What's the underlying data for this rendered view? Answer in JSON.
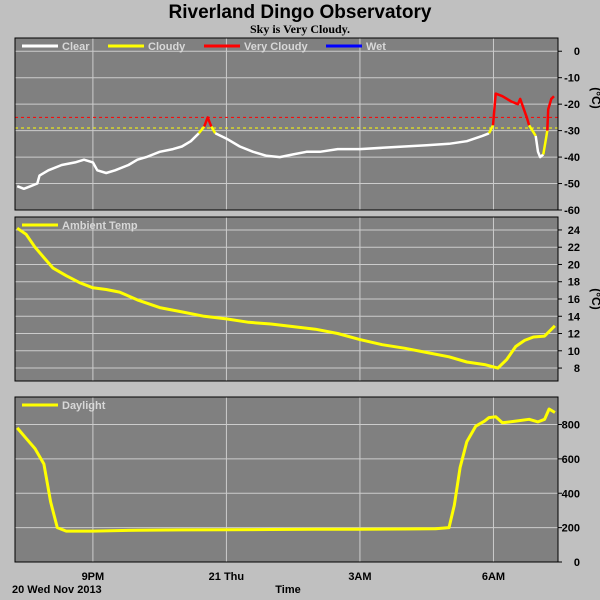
{
  "title": "Riverland Dingo Observatory",
  "subtitle": "Sky is Very Cloudy.",
  "colors": {
    "background": "#c0c0c0",
    "plot_bg": "#808080",
    "grid": "#cccccc",
    "clear": "#ffffff",
    "cloudy": "#ffff00",
    "very_cloudy": "#ff0000",
    "wet": "#0000ff"
  },
  "x_axis": {
    "label": "Time",
    "date_label": "20 Wed Nov 2013",
    "ticks": [
      "9PM",
      "21 Thu",
      "3AM",
      "6AM"
    ],
    "tick_hours": [
      21,
      24,
      27,
      30
    ],
    "range": [
      19.25,
      31.45
    ]
  },
  "chart_data": [
    {
      "type": "line",
      "name": "sky",
      "legend": [
        "Clear",
        "Cloudy",
        "Very Cloudy",
        "Wet"
      ],
      "ylabel": "(°C)",
      "ylim": [
        -60,
        5
      ],
      "yticks": [
        0,
        -10,
        -20,
        -30,
        -40,
        -50,
        -60
      ],
      "thresholds": [
        {
          "value": -25,
          "color": "#ff0000"
        },
        {
          "value": -29,
          "color": "#ffff00"
        }
      ],
      "segments": [
        {
          "class": "clear",
          "points": [
            [
              19.3,
              -51
            ],
            [
              19.45,
              -52
            ],
            [
              19.6,
              -51
            ],
            [
              19.75,
              -50
            ],
            [
              19.8,
              -47
            ],
            [
              20.0,
              -45
            ],
            [
              20.3,
              -43
            ],
            [
              20.6,
              -42
            ],
            [
              20.8,
              -41
            ],
            [
              21.0,
              -42
            ],
            [
              21.1,
              -45
            ],
            [
              21.3,
              -46
            ],
            [
              21.5,
              -45
            ],
            [
              21.8,
              -43
            ],
            [
              22.0,
              -41
            ],
            [
              22.2,
              -40
            ],
            [
              22.5,
              -38
            ],
            [
              22.8,
              -37
            ],
            [
              23.0,
              -36
            ],
            [
              23.2,
              -34
            ],
            [
              23.38,
              -31
            ]
          ]
        },
        {
          "class": "cloudy",
          "points": [
            [
              23.38,
              -31
            ],
            [
              23.5,
              -28.5
            ]
          ]
        },
        {
          "class": "very_cloudy",
          "points": [
            [
              23.5,
              -28.5
            ],
            [
              23.58,
              -25
            ],
            [
              23.66,
              -28.5
            ]
          ]
        },
        {
          "class": "cloudy",
          "points": [
            [
              23.66,
              -28.5
            ],
            [
              23.75,
              -31
            ]
          ]
        },
        {
          "class": "clear",
          "points": [
            [
              23.75,
              -31
            ],
            [
              24.0,
              -33
            ],
            [
              24.3,
              -36
            ],
            [
              24.6,
              -38
            ],
            [
              24.9,
              -39.5
            ],
            [
              25.2,
              -40
            ],
            [
              25.5,
              -39
            ],
            [
              25.8,
              -38
            ],
            [
              26.1,
              -38
            ],
            [
              26.5,
              -37
            ],
            [
              27.0,
              -37
            ],
            [
              27.5,
              -36.5
            ],
            [
              28.0,
              -36
            ],
            [
              28.5,
              -35.5
            ],
            [
              29.0,
              -35
            ],
            [
              29.4,
              -34
            ],
            [
              29.75,
              -32
            ],
            [
              29.9,
              -31
            ]
          ]
        },
        {
          "class": "cloudy",
          "points": [
            [
              29.9,
              -31
            ],
            [
              29.99,
              -28
            ]
          ]
        },
        {
          "class": "very_cloudy",
          "points": [
            [
              29.99,
              -28
            ],
            [
              30.05,
              -16
            ],
            [
              30.2,
              -17
            ],
            [
              30.4,
              -19
            ],
            [
              30.55,
              -20
            ],
            [
              30.6,
              -18
            ],
            [
              30.75,
              -25
            ],
            [
              30.8,
              -28
            ]
          ]
        },
        {
          "class": "cloudy",
          "points": [
            [
              30.8,
              -28
            ],
            [
              30.95,
              -32
            ]
          ]
        },
        {
          "class": "clear",
          "points": [
            [
              30.95,
              -32
            ],
            [
              31.0,
              -38
            ],
            [
              31.05,
              -40
            ],
            [
              31.12,
              -39
            ]
          ]
        },
        {
          "class": "cloudy",
          "points": [
            [
              31.12,
              -39
            ],
            [
              31.18,
              -33
            ],
            [
              31.21,
              -30
            ]
          ]
        },
        {
          "class": "very_cloudy",
          "points": [
            [
              31.21,
              -30
            ],
            [
              31.23,
              -22
            ],
            [
              31.3,
              -18
            ],
            [
              31.36,
              -17
            ]
          ]
        }
      ]
    },
    {
      "type": "line",
      "name": "Ambient Temp",
      "legend": [
        "Ambient Temp"
      ],
      "ylabel": "(°C)",
      "ylim": [
        6.5,
        25.5
      ],
      "yticks": [
        24,
        22,
        20,
        18,
        16,
        14,
        12,
        10,
        8
      ],
      "color": "#ffff00",
      "points": [
        [
          19.3,
          24.2
        ],
        [
          19.5,
          23.5
        ],
        [
          19.7,
          22
        ],
        [
          19.9,
          20.8
        ],
        [
          20.1,
          19.6
        ],
        [
          20.4,
          18.7
        ],
        [
          20.7,
          17.9
        ],
        [
          21.0,
          17.3
        ],
        [
          21.3,
          17.1
        ],
        [
          21.6,
          16.8
        ],
        [
          22.0,
          15.9
        ],
        [
          22.5,
          15.0
        ],
        [
          23.0,
          14.5
        ],
        [
          23.5,
          14.0
        ],
        [
          24.0,
          13.7
        ],
        [
          24.5,
          13.3
        ],
        [
          25.0,
          13.1
        ],
        [
          25.5,
          12.8
        ],
        [
          26.0,
          12.5
        ],
        [
          26.5,
          12.0
        ],
        [
          27.0,
          11.3
        ],
        [
          27.5,
          10.7
        ],
        [
          28.0,
          10.3
        ],
        [
          28.5,
          9.8
        ],
        [
          29.0,
          9.3
        ],
        [
          29.4,
          8.7
        ],
        [
          29.8,
          8.4
        ],
        [
          30.1,
          8.0
        ],
        [
          30.3,
          9.0
        ],
        [
          30.5,
          10.5
        ],
        [
          30.7,
          11.2
        ],
        [
          30.9,
          11.6
        ],
        [
          31.15,
          11.7
        ],
        [
          31.38,
          12.9
        ]
      ]
    },
    {
      "type": "line",
      "name": "Daylight",
      "legend": [
        "Daylight"
      ],
      "ylim": [
        0,
        960
      ],
      "yticks": [
        800,
        600,
        400,
        200,
        0
      ],
      "color": "#ffff00",
      "points": [
        [
          19.3,
          780
        ],
        [
          19.5,
          720
        ],
        [
          19.7,
          660
        ],
        [
          19.9,
          570
        ],
        [
          20.05,
          350
        ],
        [
          20.2,
          200
        ],
        [
          20.4,
          180
        ],
        [
          21.0,
          180
        ],
        [
          22.0,
          185
        ],
        [
          23.0,
          187
        ],
        [
          24.0,
          188
        ],
        [
          25.0,
          189
        ],
        [
          26.0,
          190
        ],
        [
          27.0,
          191
        ],
        [
          28.0,
          192
        ],
        [
          28.7,
          193
        ],
        [
          29.0,
          200
        ],
        [
          29.12,
          330
        ],
        [
          29.25,
          550
        ],
        [
          29.4,
          700
        ],
        [
          29.6,
          790
        ],
        [
          29.8,
          820
        ],
        [
          29.9,
          840
        ],
        [
          30.05,
          845
        ],
        [
          30.2,
          810
        ],
        [
          30.5,
          820
        ],
        [
          30.8,
          830
        ],
        [
          31.0,
          815
        ],
        [
          31.15,
          830
        ],
        [
          31.25,
          890
        ],
        [
          31.38,
          870
        ]
      ]
    }
  ]
}
